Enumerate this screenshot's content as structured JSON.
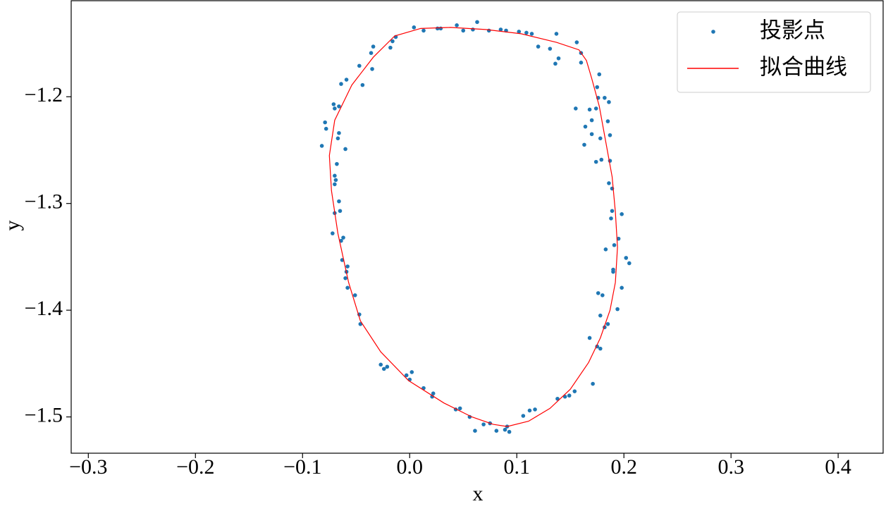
{
  "chart_data": {
    "type": "scatter",
    "x_label": "x",
    "y_label": "y",
    "xlim": [
      -0.316,
      0.442
    ],
    "ylim": [
      -1.534,
      -1.11
    ],
    "xticks": [
      {
        "value": -0.3,
        "label": "−0.3"
      },
      {
        "value": -0.2,
        "label": "−0.2"
      },
      {
        "value": -0.1,
        "label": "−0.1"
      },
      {
        "value": 0,
        "label": "0.0"
      },
      0.1,
      0.2,
      0.3,
      0.4
    ],
    "yticks": [
      {
        "value": -1.2,
        "label": "−1.2"
      },
      {
        "value": -1.3,
        "label": "−1.3"
      },
      {
        "value": -1.4,
        "label": "−1.4"
      },
      {
        "value": -1.5,
        "label": "−1.5"
      }
    ],
    "legend": "upper right",
    "series": [
      {
        "name": "投影点",
        "color": "#1f77b4",
        "kind": "points",
        "x": [
          0.004,
          0.013,
          0.026,
          0.029,
          0.044,
          0.05,
          0.059,
          0.063,
          0.074,
          0.085,
          0.09,
          0.102,
          0.109,
          0.114,
          0.12,
          0.131,
          0.137,
          0.136,
          0.139,
          0.156,
          0.16,
          0.16,
          -0.013,
          -0.016,
          -0.018,
          -0.034,
          -0.036,
          -0.035,
          -0.044,
          -0.047,
          -0.059,
          -0.064,
          -0.071,
          -0.066,
          -0.07,
          -0.079,
          -0.078,
          -0.082,
          -0.066,
          -0.067,
          -0.06,
          -0.068,
          -0.07,
          -0.069,
          -0.07,
          -0.066,
          -0.065,
          -0.07,
          -0.072,
          -0.062,
          -0.064,
          -0.063,
          -0.058,
          -0.059,
          -0.06,
          -0.058,
          -0.051,
          -0.047,
          -0.046,
          -0.027,
          -0.024,
          -0.021,
          -0.003,
          0.0,
          0.002,
          0.013,
          0.022,
          0.021,
          0.043,
          0.047,
          0.056,
          0.061,
          0.069,
          0.075,
          0.081,
          0.089,
          0.091,
          0.093,
          0.106,
          0.112,
          0.117,
          0.138,
          0.145,
          0.149,
          0.154,
          0.171,
          0.175,
          0.178,
          0.168,
          0.18,
          0.182,
          0.185,
          0.177,
          0.175,
          0.176,
          0.182,
          0.174,
          0.168,
          0.155,
          0.17,
          0.164,
          0.17,
          0.163,
          0.178,
          0.187,
          0.185,
          0.186,
          0.174,
          0.179,
          0.187,
          0.186,
          0.189,
          0.189,
          0.188,
          0.198,
          0.195,
          0.191,
          0.183,
          0.19,
          0.19,
          0.202,
          0.205,
          0.198,
          0.176,
          0.194,
          0.178
        ],
        "values": [
          -1.135,
          -1.138,
          -1.136,
          -1.136,
          -1.133,
          -1.138,
          -1.137,
          -1.13,
          -1.138,
          -1.137,
          -1.138,
          -1.139,
          -1.14,
          -1.141,
          -1.153,
          -1.155,
          -1.141,
          -1.169,
          -1.164,
          -1.149,
          -1.159,
          -1.168,
          -1.144,
          -1.148,
          -1.154,
          -1.153,
          -1.159,
          -1.174,
          -1.189,
          -1.171,
          -1.184,
          -1.188,
          -1.207,
          -1.209,
          -1.211,
          -1.224,
          -1.23,
          -1.246,
          -1.234,
          -1.239,
          -1.249,
          -1.263,
          -1.274,
          -1.278,
          -1.282,
          -1.298,
          -1.307,
          -1.309,
          -1.328,
          -1.332,
          -1.335,
          -1.353,
          -1.359,
          -1.364,
          -1.37,
          -1.379,
          -1.386,
          -1.404,
          -1.413,
          -1.451,
          -1.455,
          -1.453,
          -1.461,
          -1.465,
          -1.458,
          -1.473,
          -1.478,
          -1.481,
          -1.493,
          -1.492,
          -1.5,
          -1.513,
          -1.507,
          -1.506,
          -1.513,
          -1.512,
          -1.509,
          -1.514,
          -1.499,
          -1.494,
          -1.493,
          -1.483,
          -1.481,
          -1.48,
          -1.476,
          -1.469,
          -1.434,
          -1.436,
          -1.426,
          -1.386,
          -1.416,
          -1.413,
          -1.179,
          -1.191,
          -1.201,
          -1.201,
          -1.211,
          -1.212,
          -1.211,
          -1.222,
          -1.228,
          -1.235,
          -1.245,
          -1.239,
          -1.236,
          -1.223,
          -1.205,
          -1.261,
          -1.259,
          -1.26,
          -1.281,
          -1.286,
          -1.307,
          -1.314,
          -1.31,
          -1.333,
          -1.339,
          -1.343,
          -1.362,
          -1.364,
          -1.351,
          -1.356,
          -1.379,
          -1.384,
          -1.399,
          -1.405
        ]
      },
      {
        "name": "拟合曲线",
        "color": "#ff0000",
        "kind": "line",
        "x": [
          0.01,
          0.038,
          0.071,
          0.104,
          0.137,
          0.158,
          0.165,
          0.17,
          0.177,
          0.183,
          0.189,
          0.192,
          0.194,
          0.192,
          0.187,
          0.178,
          0.167,
          0.15,
          0.131,
          0.111,
          0.091,
          0.078,
          0.058,
          0.032,
          -0.001,
          -0.027,
          -0.046,
          -0.057,
          -0.067,
          -0.073,
          -0.075,
          -0.07,
          -0.054,
          -0.034,
          -0.014,
          0.01
        ],
        "values": [
          -1.136,
          -1.135,
          -1.137,
          -1.141,
          -1.149,
          -1.156,
          -1.166,
          -1.183,
          -1.209,
          -1.242,
          -1.275,
          -1.308,
          -1.341,
          -1.374,
          -1.4,
          -1.426,
          -1.449,
          -1.474,
          -1.492,
          -1.504,
          -1.509,
          -1.507,
          -1.5,
          -1.487,
          -1.466,
          -1.439,
          -1.41,
          -1.374,
          -1.328,
          -1.288,
          -1.255,
          -1.222,
          -1.189,
          -1.163,
          -1.143,
          -1.136
        ]
      }
    ]
  }
}
